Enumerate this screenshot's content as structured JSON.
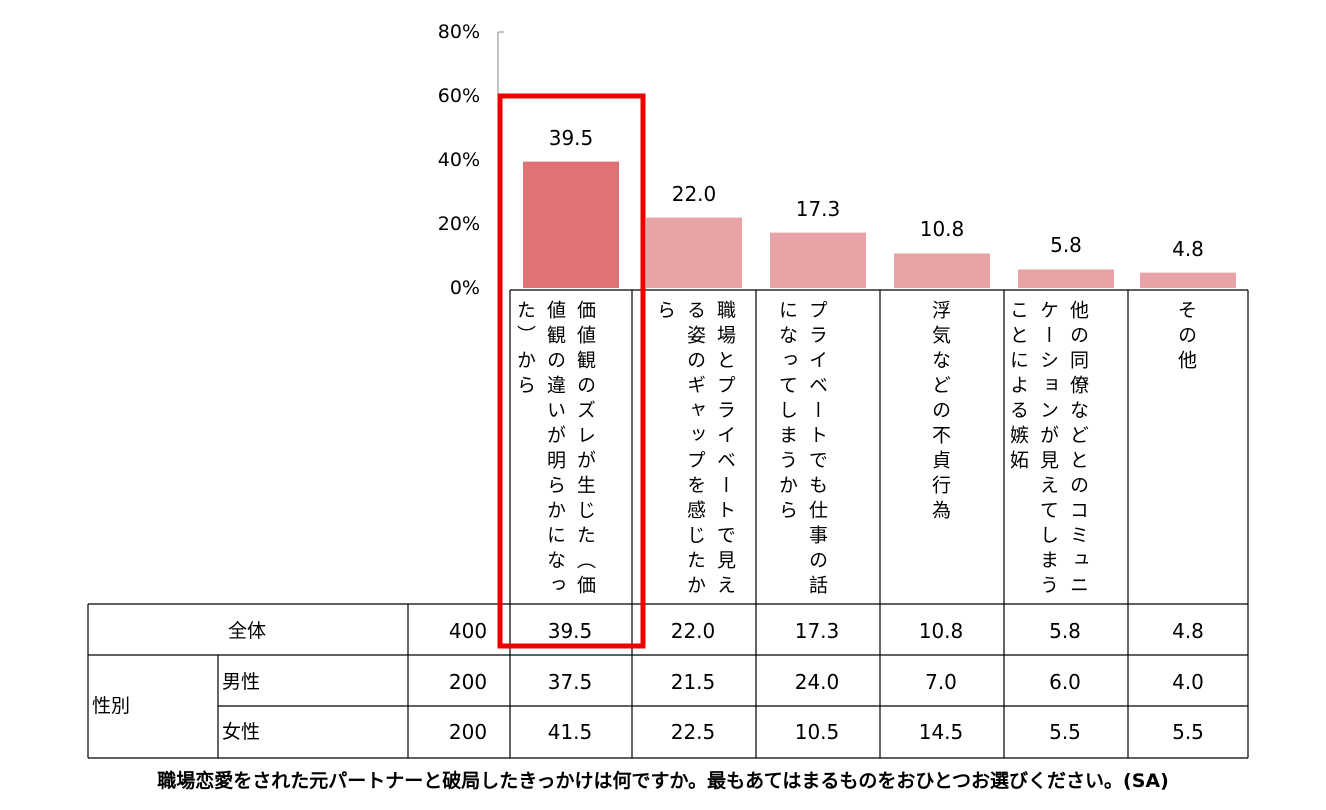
{
  "chart_data": {
    "type": "bar",
    "title": "",
    "yticks": [
      "80%",
      "60%",
      "40%",
      "20%",
      "0%"
    ],
    "ylim": [
      0,
      80
    ],
    "categories": [
      "価値観のズレが生じた（価値観の違いが明らかになった）から",
      "職場とプライベートで見える姿のギャップを感じたから",
      "プライベートでも仕事の話になってしまうから",
      "浮気などの不貞行為",
      "他の同僚などとのコミュニケーションが見えてしまうことによる嫉妬",
      "その他"
    ],
    "values": [
      39.5,
      22.0,
      17.3,
      10.8,
      5.8,
      4.8
    ],
    "value_labels": [
      "39.5",
      "22.0",
      "17.3",
      "10.8",
      "5.8",
      "4.8"
    ],
    "highlighted_index": 0,
    "colors": {
      "highlight": "#E27176",
      "bar": "#E9A3A6",
      "box": "#EE0000"
    }
  },
  "table": {
    "rows": [
      {
        "label": "全体",
        "n": "400",
        "values": [
          "39.5",
          "22.0",
          "17.3",
          "10.8",
          "5.8",
          "4.8"
        ]
      },
      {
        "label": "男性",
        "n": "200",
        "values": [
          "37.5",
          "21.5",
          "24.0",
          "7.0",
          "6.0",
          "4.0"
        ]
      },
      {
        "label": "女性",
        "n": "200",
        "values": [
          "41.5",
          "22.5",
          "10.5",
          "14.5",
          "5.5",
          "5.5"
        ]
      }
    ],
    "group_label": "性別"
  },
  "question": "職場恋愛をされた元パートナーと破局したきっかけは何ですか。最もあてはまるものをおひとつお選びください。(SA)"
}
